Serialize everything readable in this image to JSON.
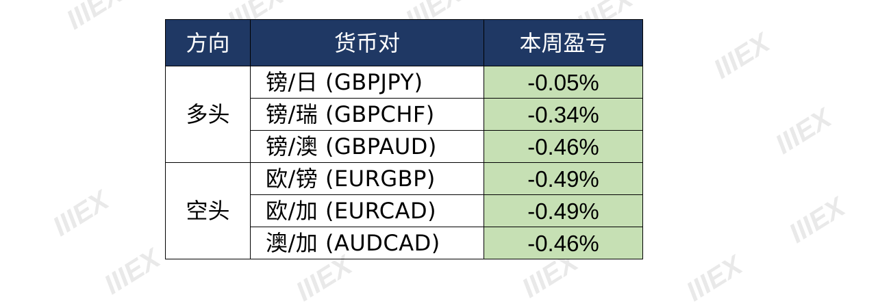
{
  "table": {
    "headers": {
      "direction": "方向",
      "pair": "货币对",
      "pnl": "本周盈亏"
    },
    "groups": [
      {
        "direction": "多头",
        "rows": [
          {
            "pair": "镑/日 (GBPJPY)",
            "pnl": "-0.05%"
          },
          {
            "pair": "镑/瑞 (GBPCHF)",
            "pnl": "-0.34%"
          },
          {
            "pair": "镑/澳 (GBPAUD)",
            "pnl": "-0.46%"
          }
        ]
      },
      {
        "direction": "空头",
        "rows": [
          {
            "pair": "欧/镑 (EURGBP)",
            "pnl": "-0.49%"
          },
          {
            "pair": "欧/加 (EURCAD)",
            "pnl": "-0.49%"
          },
          {
            "pair": "澳/加 (AUDCAD)",
            "pnl": "-0.46%"
          }
        ]
      }
    ]
  },
  "watermark": {
    "text": "IIIEX"
  },
  "colors": {
    "header_bg": "#1f3864",
    "header_text": "#ffffff",
    "pnl_bg": "#c6e0b4",
    "border": "#000000"
  }
}
